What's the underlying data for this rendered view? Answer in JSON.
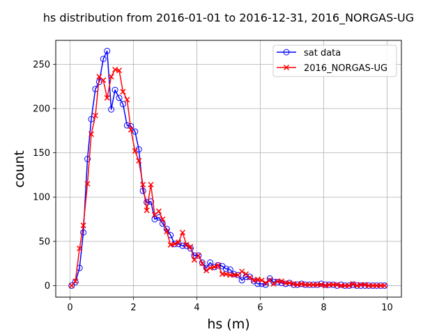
{
  "chart_data": {
    "type": "line",
    "title": "hs distribution from 2016-01-01 to 2016-12-31, 2016_NORGAS-UG",
    "xlabel": "hs (m)",
    "ylabel": "count",
    "xlim": [
      -0.45,
      10.45
    ],
    "ylim": [
      -13,
      277
    ],
    "xticks": [
      0,
      2,
      4,
      6,
      8,
      10
    ],
    "yticks": [
      0,
      50,
      100,
      150,
      200,
      250
    ],
    "grid": true,
    "legend_position": "top-right",
    "series": [
      {
        "name": "sat data",
        "color": "#0000ff",
        "marker": "circle-open",
        "x": [
          0.05,
          0.17,
          0.3,
          0.42,
          0.55,
          0.67,
          0.8,
          0.92,
          1.05,
          1.17,
          1.3,
          1.42,
          1.55,
          1.67,
          1.8,
          1.92,
          2.05,
          2.17,
          2.3,
          2.42,
          2.55,
          2.67,
          2.8,
          2.92,
          3.05,
          3.17,
          3.3,
          3.42,
          3.55,
          3.67,
          3.8,
          3.92,
          4.05,
          4.17,
          4.3,
          4.42,
          4.55,
          4.67,
          4.8,
          4.92,
          5.05,
          5.17,
          5.3,
          5.42,
          5.55,
          5.67,
          5.8,
          5.92,
          6.05,
          6.17,
          6.3,
          6.42,
          6.55,
          6.67,
          6.8,
          6.92,
          7.05,
          7.17,
          7.3,
          7.42,
          7.55,
          7.67,
          7.8,
          7.92,
          8.05,
          8.17,
          8.3,
          8.42,
          8.55,
          8.67,
          8.8,
          8.92,
          9.05,
          9.17,
          9.3,
          9.42,
          9.55,
          9.67,
          9.8,
          9.92
        ],
        "y": [
          0,
          4,
          20,
          60,
          143,
          188,
          222,
          230,
          256,
          265,
          199,
          221,
          212,
          205,
          181,
          180,
          174,
          154,
          107,
          94,
          95,
          75,
          77,
          70,
          64,
          57,
          47,
          47,
          45,
          45,
          42,
          34,
          34,
          26,
          20,
          26,
          21,
          23,
          22,
          19,
          18,
          13,
          12,
          6,
          10,
          10,
          5,
          2,
          2,
          1,
          8,
          4,
          4,
          3,
          2,
          3,
          1,
          1,
          2,
          1,
          1,
          1,
          1,
          2,
          1,
          1,
          1,
          0,
          1,
          0,
          0,
          1,
          0,
          0,
          0,
          0,
          0,
          0,
          0,
          0
        ]
      },
      {
        "name": "2016_NORGAS-UG",
        "color": "#ff0000",
        "marker": "x",
        "x": [
          0.05,
          0.17,
          0.3,
          0.42,
          0.55,
          0.67,
          0.8,
          0.92,
          1.05,
          1.17,
          1.3,
          1.42,
          1.55,
          1.67,
          1.8,
          1.92,
          2.05,
          2.17,
          2.3,
          2.42,
          2.55,
          2.67,
          2.8,
          2.92,
          3.05,
          3.17,
          3.3,
          3.42,
          3.55,
          3.67,
          3.8,
          3.92,
          4.05,
          4.17,
          4.3,
          4.42,
          4.55,
          4.67,
          4.8,
          4.92,
          5.05,
          5.17,
          5.3,
          5.42,
          5.55,
          5.67,
          5.8,
          5.92,
          6.05,
          6.17,
          6.3,
          6.42,
          6.55,
          6.67,
          6.8,
          6.92,
          7.05,
          7.17,
          7.3,
          7.42,
          7.55,
          7.67,
          7.8,
          7.92,
          8.05,
          8.17,
          8.3,
          8.42,
          8.55,
          8.67,
          8.8,
          8.92,
          9.05,
          9.17,
          9.3,
          9.42,
          9.55,
          9.67,
          9.8,
          9.92
        ],
        "y": [
          0,
          5,
          42,
          68,
          115,
          171,
          192,
          236,
          232,
          212,
          236,
          244,
          243,
          219,
          210,
          176,
          152,
          141,
          114,
          85,
          114,
          80,
          84,
          75,
          61,
          46,
          47,
          49,
          60,
          46,
          44,
          29,
          34,
          25,
          17,
          20,
          21,
          23,
          13,
          13,
          12,
          12,
          12,
          16,
          13,
          9,
          6,
          7,
          6,
          3,
          6,
          2,
          5,
          5,
          3,
          3,
          2,
          1,
          2,
          1,
          1,
          1,
          1,
          1,
          0,
          1,
          1,
          1,
          0,
          0,
          0,
          2,
          0,
          1,
          1,
          0,
          0,
          0,
          0,
          0
        ]
      }
    ]
  }
}
